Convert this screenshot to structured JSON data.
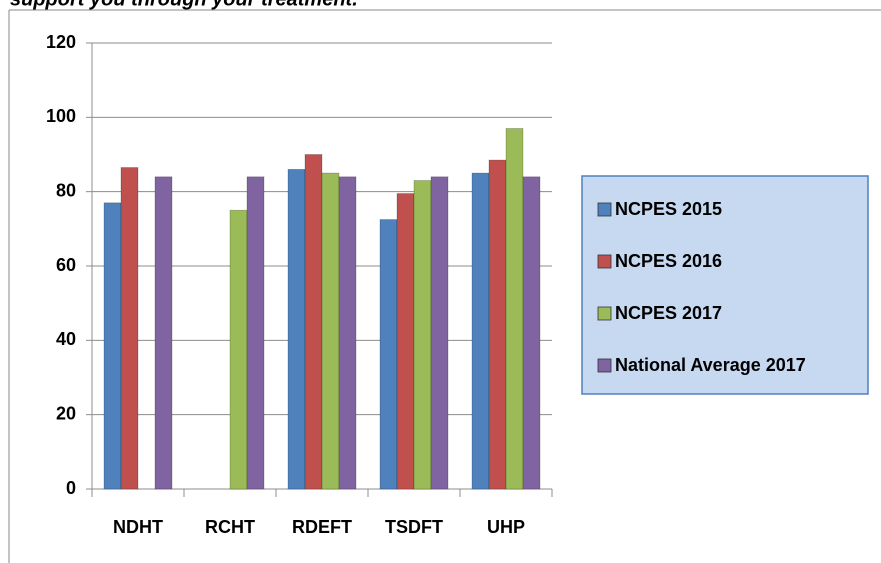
{
  "chart_data": {
    "type": "bar",
    "title": "support you through your treatment.",
    "categories": [
      "NDHT",
      "RCHT",
      "RDEFT",
      "TSDFT",
      "UHP"
    ],
    "series": [
      {
        "name": "NCPES 2015",
        "color": "#4f81bd",
        "values": [
          77,
          null,
          86,
          72.5,
          85
        ]
      },
      {
        "name": "NCPES 2016",
        "color": "#c0504d",
        "values": [
          86.5,
          null,
          90,
          79.5,
          88.5
        ]
      },
      {
        "name": "NCPES 2017",
        "color": "#9bbb59",
        "values": [
          null,
          75,
          85,
          83,
          97
        ]
      },
      {
        "name": "National Average 2017",
        "color": "#8064a2",
        "values": [
          84,
          84,
          84,
          84,
          84
        ]
      }
    ],
    "ylim": [
      0,
      120
    ],
    "yticks": [
      0,
      20,
      40,
      60,
      80,
      100,
      120
    ],
    "grid": true,
    "legend": "right"
  }
}
